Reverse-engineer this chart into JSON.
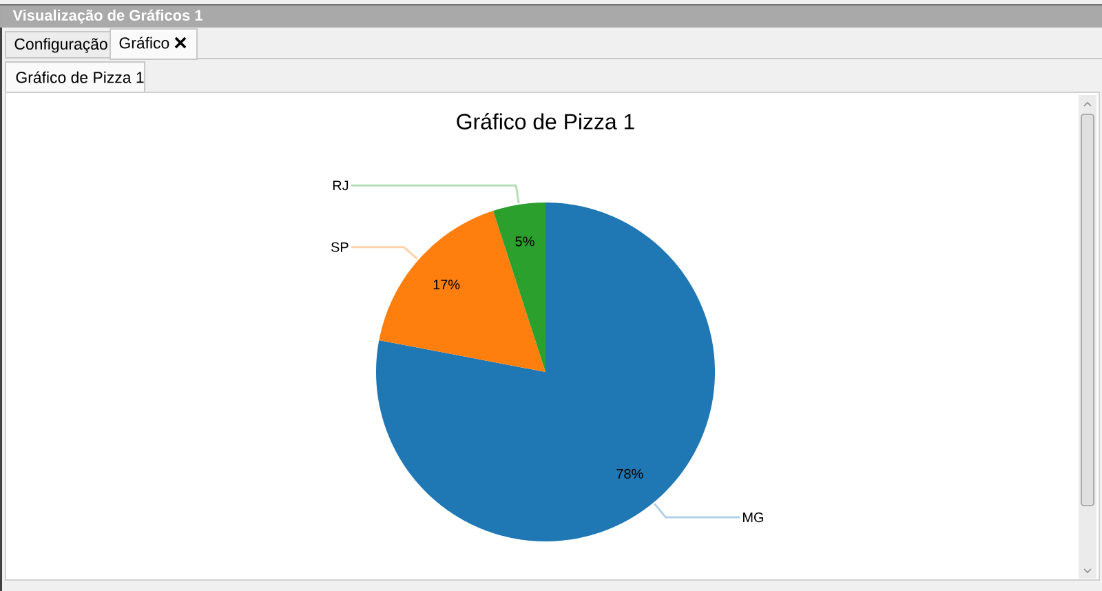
{
  "chart_data": {
    "type": "pie",
    "title": "Gráfico de Pizza 1",
    "categories": [
      "MG",
      "SP",
      "RJ"
    ],
    "values": [
      78,
      17,
      5
    ],
    "colors": [
      "#1f77b4",
      "#ff7f0e",
      "#2ca02c"
    ],
    "value_labels": [
      "78%",
      "17%",
      "5%"
    ],
    "annotations": [
      "Visualização de Gráficos 1",
      "Configuração",
      "Gráfico",
      "Gráfico de Pizza 1"
    ]
  }
}
